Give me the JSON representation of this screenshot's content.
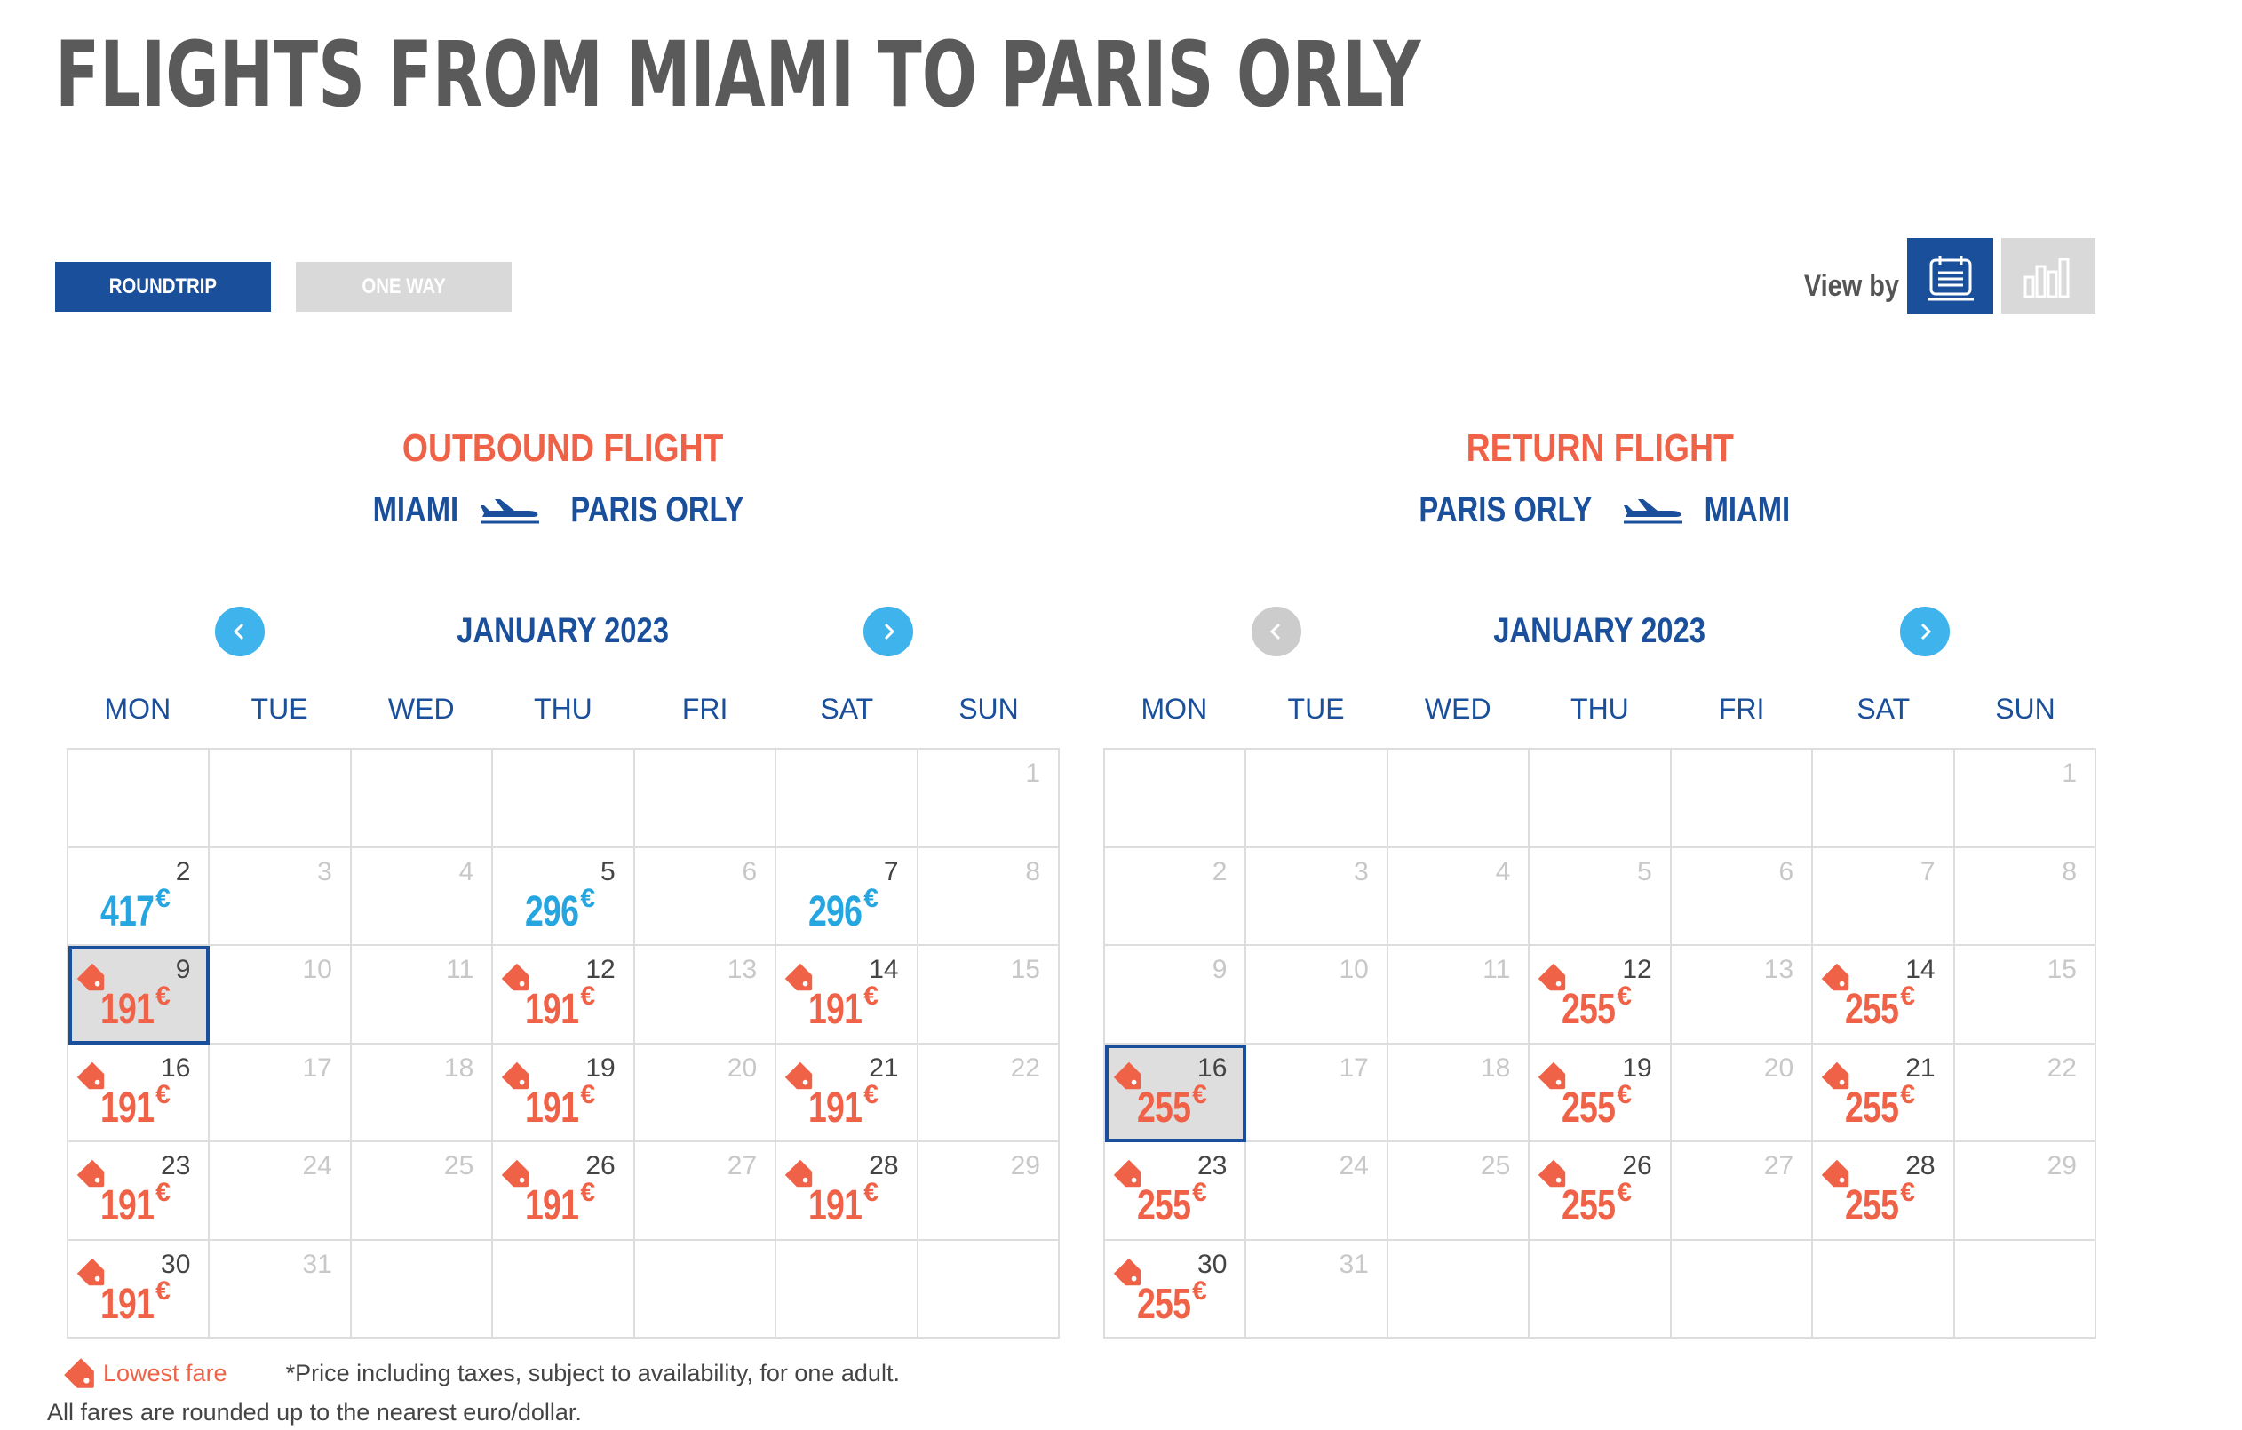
{
  "page": {
    "title": "FLIGHTS FROM MIAMI TO PARIS ORLY"
  },
  "trip_type": {
    "options": [
      {
        "label": "ROUNDTRIP",
        "selected": true
      },
      {
        "label": "ONE WAY",
        "selected": false
      }
    ]
  },
  "view_by": {
    "label": "View by",
    "options": [
      {
        "icon": "calendar-list-icon",
        "selected": true
      },
      {
        "icon": "bar-chart-icon",
        "selected": false
      }
    ]
  },
  "colors": {
    "brand_blue": "#1a4f9c",
    "accent_orange": "#ef6247",
    "fare_blue": "#26a6e0",
    "nav_blue": "#3fb3ec"
  },
  "weekdays": [
    "MON",
    "TUE",
    "WED",
    "THU",
    "FRI",
    "SAT",
    "SUN"
  ],
  "outbound": {
    "title": "OUTBOUND FLIGHT",
    "origin": "MIAMI",
    "destination": "PARIS ORLY",
    "month": "JANUARY 2023",
    "prev_enabled": true,
    "next_enabled": true,
    "selected_day": 9,
    "fares": {
      "2": {
        "price": "417",
        "lowest": false
      },
      "5": {
        "price": "296",
        "lowest": false
      },
      "7": {
        "price": "296",
        "lowest": false
      },
      "9": {
        "price": "191",
        "lowest": true
      },
      "12": {
        "price": "191",
        "lowest": true
      },
      "14": {
        "price": "191",
        "lowest": true
      },
      "16": {
        "price": "191",
        "lowest": true
      },
      "19": {
        "price": "191",
        "lowest": true
      },
      "21": {
        "price": "191",
        "lowest": true
      },
      "23": {
        "price": "191",
        "lowest": true
      },
      "26": {
        "price": "191",
        "lowest": true
      },
      "28": {
        "price": "191",
        "lowest": true
      },
      "30": {
        "price": "191",
        "lowest": true
      }
    }
  },
  "return": {
    "title": "RETURN FLIGHT",
    "origin": "PARIS ORLY",
    "destination": "MIAMI",
    "month": "JANUARY 2023",
    "prev_enabled": false,
    "next_enabled": true,
    "selected_day": 16,
    "fares": {
      "12": {
        "price": "255",
        "lowest": true
      },
      "14": {
        "price": "255",
        "lowest": true
      },
      "16": {
        "price": "255",
        "lowest": true
      },
      "19": {
        "price": "255",
        "lowest": true
      },
      "21": {
        "price": "255",
        "lowest": true
      },
      "23": {
        "price": "255",
        "lowest": true
      },
      "26": {
        "price": "255",
        "lowest": true
      },
      "28": {
        "price": "255",
        "lowest": true
      },
      "30": {
        "price": "255",
        "lowest": true
      }
    }
  },
  "calendar": {
    "first_weekday_index": 6,
    "days_in_month": 31,
    "currency": "€"
  },
  "legend": {
    "label": "Lowest fare",
    "note": "*Price including taxes, subject to availability, for one adult."
  },
  "footnote": "All fares are rounded up to the nearest euro/dollar."
}
